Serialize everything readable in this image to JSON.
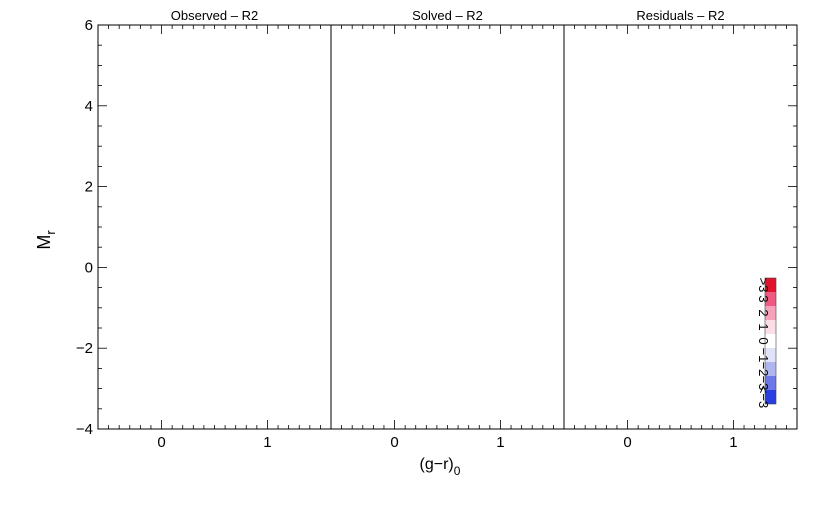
{
  "chart_data": {
    "type": "heatmap",
    "panels": [
      {
        "title": "Observed – R2",
        "kind": "density"
      },
      {
        "title": "Solved – R2",
        "kind": "density"
      },
      {
        "title": "Residuals – R2",
        "kind": "residual"
      }
    ],
    "xlabel": {
      "main": "(g−r)",
      "sub": "0"
    },
    "ylabel": {
      "main": "M",
      "sub": "r"
    },
    "xlim": [
      -0.6,
      1.6
    ],
    "ylim": [
      6,
      -4
    ],
    "x_ticks": [
      {
        "value": 0,
        "label": "0"
      },
      {
        "value": 1,
        "label": "1"
      }
    ],
    "y_ticks": [
      {
        "value": -4,
        "label": "−4"
      },
      {
        "value": -2,
        "label": "−2"
      },
      {
        "value": 0,
        "label": "0"
      },
      {
        "value": 2,
        "label": "2"
      },
      {
        "value": 4,
        "label": "4"
      },
      {
        "value": 6,
        "label": "6"
      }
    ],
    "colorbar": {
      "levels": [
        {
          "label": ">3",
          "color": "#e0142c"
        },
        {
          "label": "3",
          "color": "#ee5a82"
        },
        {
          "label": "2",
          "color": "#f5a2bb"
        },
        {
          "label": "1",
          "color": "#fbdde6"
        },
        {
          "label": "0",
          "color": "#ffffff"
        },
        {
          "label": "−1",
          "color": "#dfe2f8"
        },
        {
          "label": "−2",
          "color": "#aeb5ef"
        },
        {
          "label": "−3",
          "color": "#6d78e6"
        },
        {
          "label": "<−3",
          "color": "#2a3fe0"
        }
      ]
    }
  }
}
